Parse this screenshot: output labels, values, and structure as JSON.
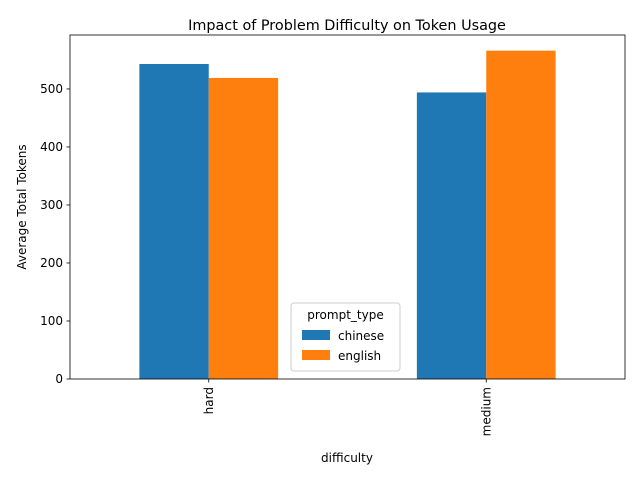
{
  "chart_data": {
    "type": "bar",
    "title": "Impact of Problem Difficulty on Token Usage",
    "xlabel": "difficulty",
    "ylabel": "Average Total Tokens",
    "categories": [
      "hard",
      "medium"
    ],
    "series": [
      {
        "name": "chinese",
        "color": "#1f77b4",
        "values": [
          543,
          494
        ]
      },
      {
        "name": "english",
        "color": "#ff7f0e",
        "values": [
          519,
          566
        ]
      }
    ],
    "ylim": [
      0,
      593
    ],
    "yticks": [
      0,
      100,
      200,
      300,
      400,
      500
    ],
    "legend": {
      "title": "prompt_type",
      "placement": "lower-center"
    },
    "grid": false
  }
}
